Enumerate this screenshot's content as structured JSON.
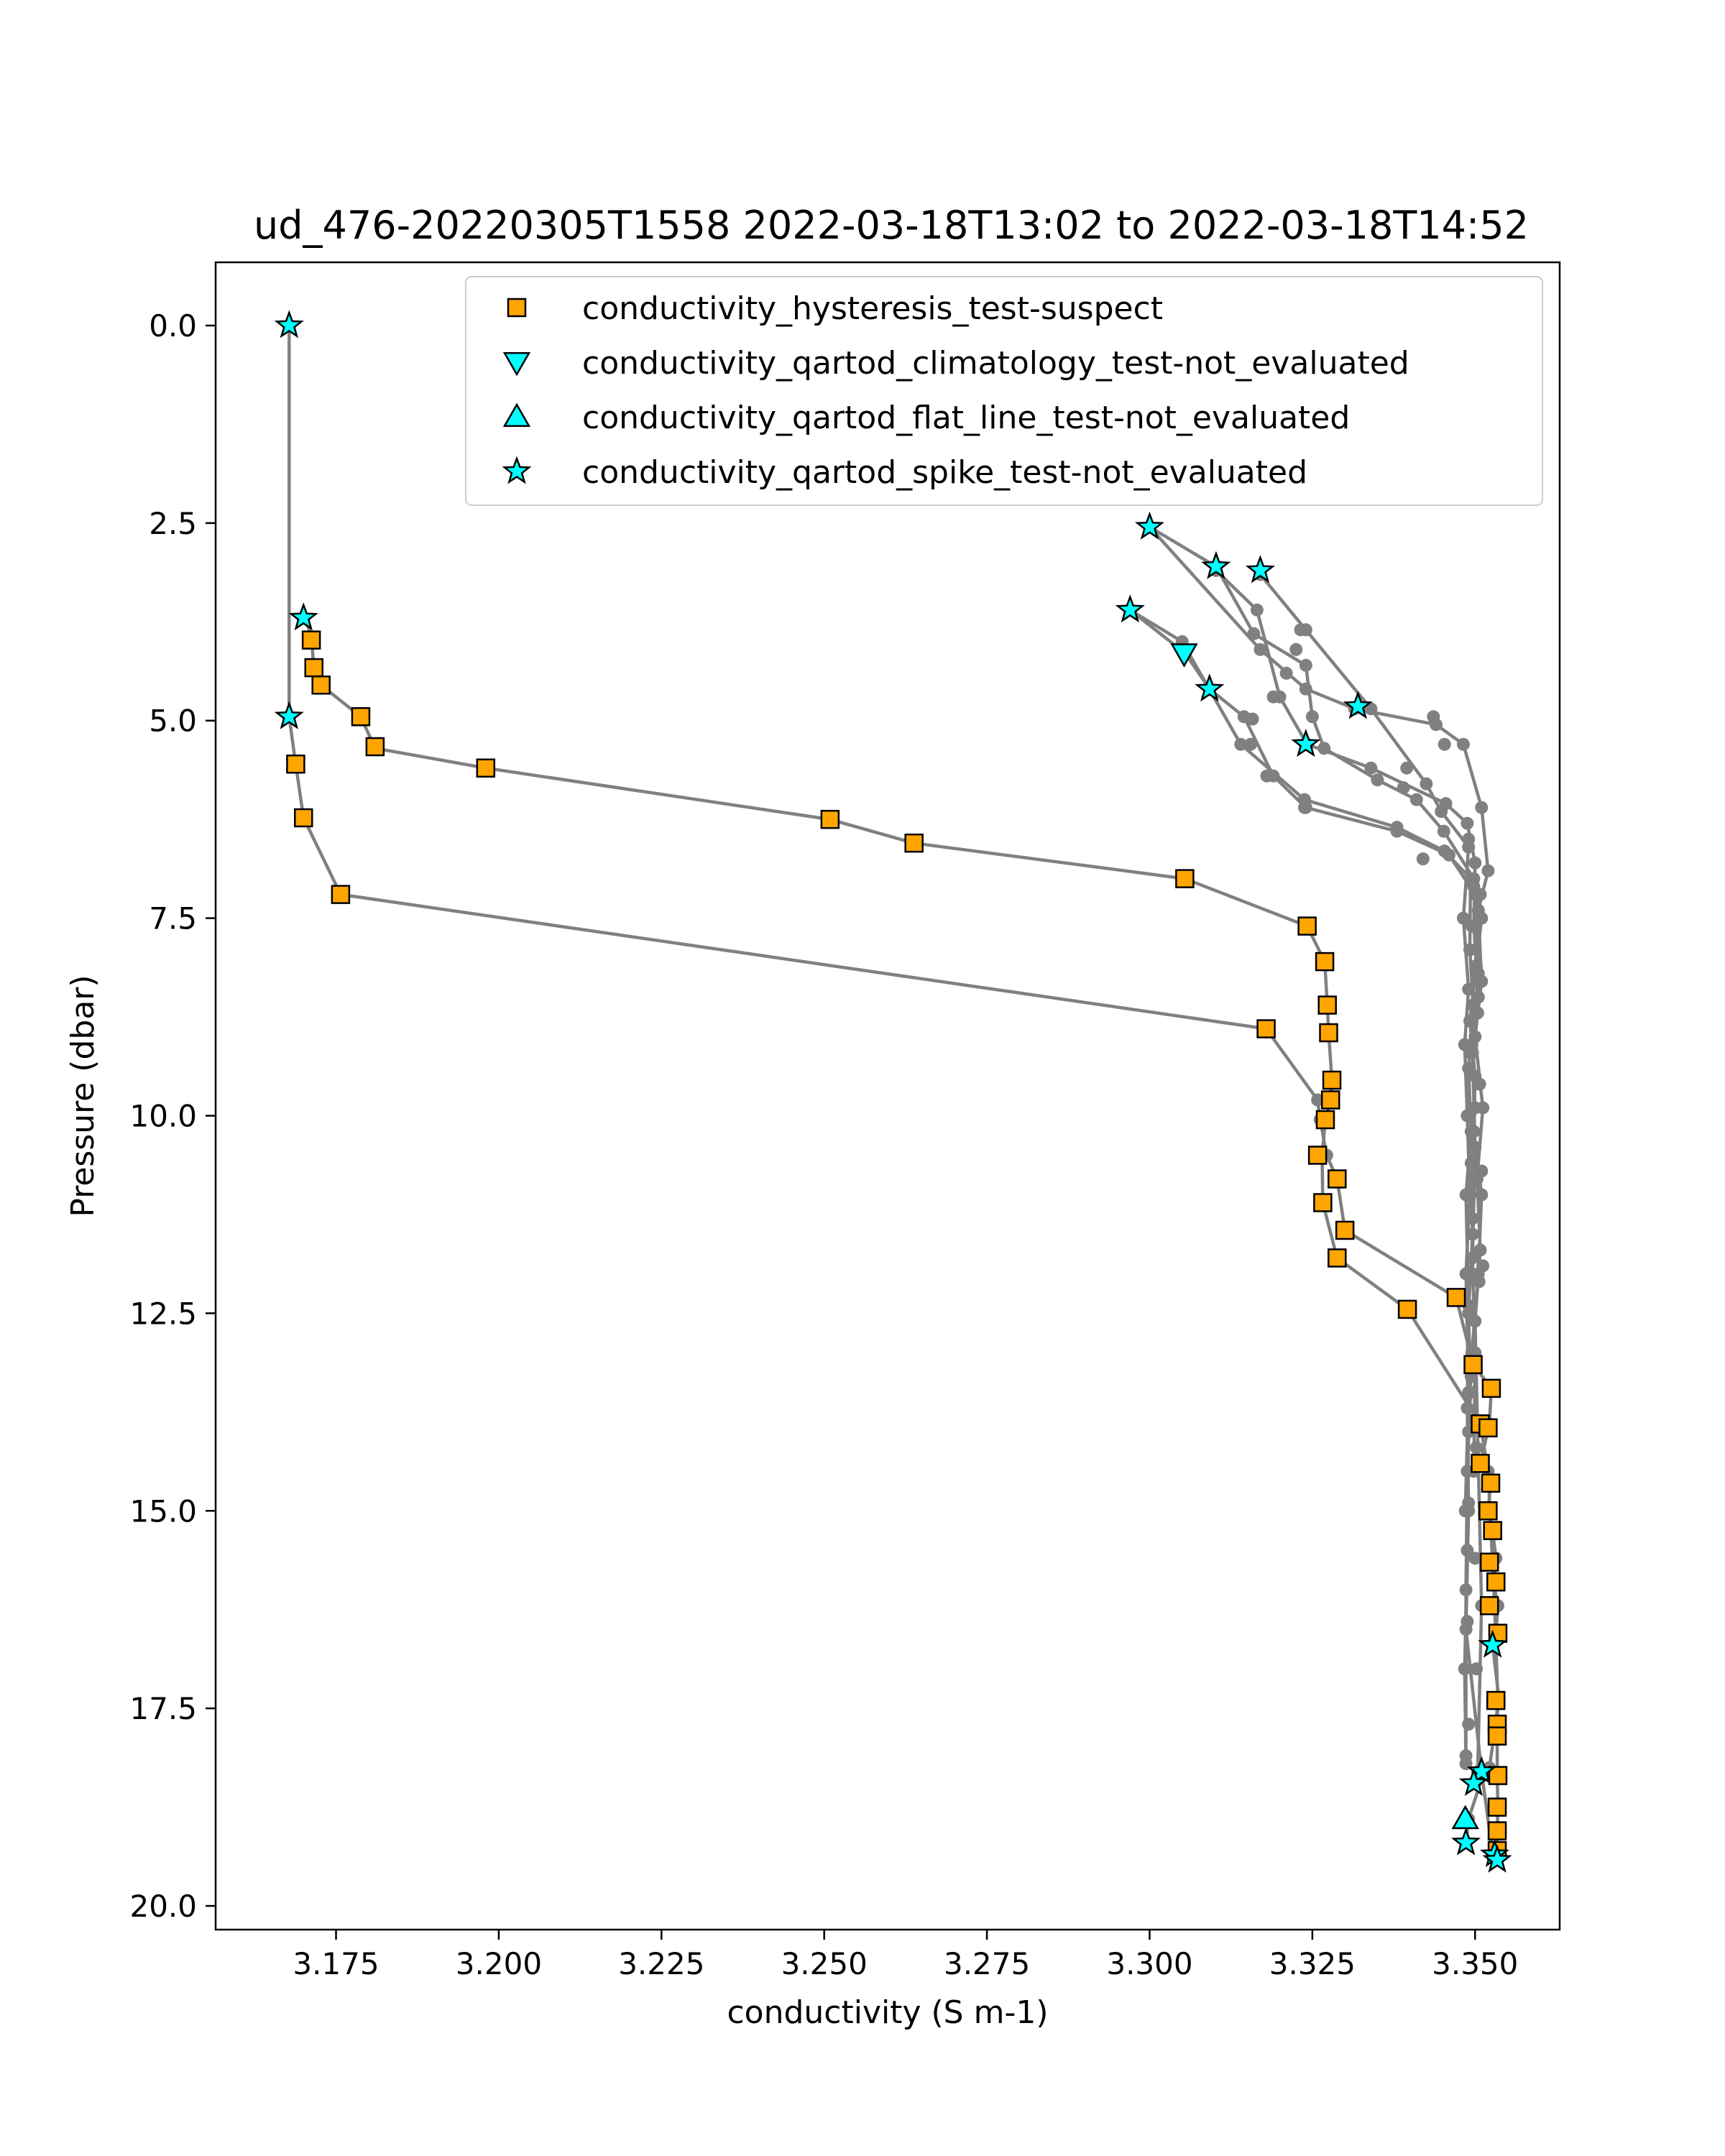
{
  "chart_data": {
    "type": "line",
    "title": "ud_476-20220305T1558 2022-03-18T13:02 to 2022-03-18T14:52",
    "xlabel": "conductivity (S m-1)",
    "ylabel": "Pressure (dbar)",
    "xlim": [
      3.1565,
      3.363
    ],
    "ylim": [
      20.3,
      -0.8
    ],
    "y_inverted": true,
    "grid": false,
    "legend_position": "upper-right",
    "xticks": [
      "3.175",
      "3.200",
      "3.225",
      "3.250",
      "3.275",
      "3.300",
      "3.325",
      "3.350"
    ],
    "yticks": [
      "0.0",
      "2.5",
      "5.0",
      "7.5",
      "10.0",
      "12.5",
      "15.0",
      "17.5",
      "20.0"
    ],
    "colors": {
      "line": "#808080",
      "suspect": "#ffa500",
      "not_evaluated": "#00ffff",
      "edge": "#000000"
    },
    "legend": [
      {
        "label": "conductivity_hysteresis_test-suspect",
        "marker": "square",
        "color": "#ffa500"
      },
      {
        "label": "conductivity_qartod_climatology_test-not_evaluated",
        "marker": "triangle-down",
        "color": "#00ffff"
      },
      {
        "label": "conductivity_qartod_flat_line_test-not_evaluated",
        "marker": "triangle-up",
        "color": "#00ffff"
      },
      {
        "label": "conductivity_qartod_spike_test-not_evaluated",
        "marker": "star",
        "color": "#00ffff"
      }
    ],
    "profiles": [
      {
        "x": [
          3.1678,
          3.1678,
          3.1678,
          3.1678,
          3.1678
        ],
        "y": [
          0.0,
          1.5,
          3.0,
          4.5,
          4.95
        ]
      },
      {
        "x": [
          3.1678,
          3.1688,
          3.17,
          3.1757,
          3.3179,
          3.3258,
          3.3262,
          3.3272,
          3.3288,
          3.33,
          3.3471,
          3.3497,
          3.3525,
          3.3522,
          3.3508,
          3.3524,
          3.352,
          3.3527,
          3.3532,
          3.3528,
          3.3535,
          3.3532,
          3.3527,
          3.3537,
          3.3522,
          3.3512,
          3.349,
          3.3486
        ],
        "y": [
          4.95,
          5.55,
          6.23,
          7.2,
          8.9,
          9.8,
          10.05,
          10.5,
          10.8,
          11.45,
          12.3,
          13.15,
          13.45,
          13.9,
          14.4,
          14.65,
          15.0,
          15.25,
          15.6,
          15.9,
          16.2,
          16.55,
          16.7,
          17.4,
          18.25,
          18.35,
          18.9,
          19.2
        ]
      },
      {
        "x": [
          3.17,
          3.1712,
          3.1716,
          3.1727,
          3.1788,
          3.181,
          3.198,
          3.2509,
          3.2638,
          3.3054,
          3.3242,
          3.3269,
          3.3273,
          3.3275,
          3.328,
          3.3278,
          3.327,
          3.3265,
          3.3266,
          3.3288,
          3.3396,
          3.3508,
          3.352,
          3.353,
          3.3535,
          3.3532,
          3.3534,
          3.3534,
          3.3535,
          3.3534,
          3.3534
        ],
        "y": [
          3.7,
          3.9,
          4.35,
          4.55,
          4.95,
          5.35,
          5.6,
          6.25,
          6.55,
          7.0,
          7.6,
          8.05,
          8.6,
          8.95,
          9.55,
          9.8,
          10.05,
          10.5,
          11.1,
          11.8,
          12.45,
          13.9,
          14.5,
          16.2,
          17.4,
          17.7,
          17.85,
          18.35,
          18.75,
          19.05,
          19.35
        ]
      },
      {
        "x": [
          3.3,
          3.3102,
          3.316,
          3.324,
          3.325,
          3.3268,
          3.335,
          3.341,
          3.3452,
          3.3498,
          3.351,
          3.3502,
          3.3492,
          3.35,
          3.3498,
          3.351,
          3.3505,
          3.3495,
          3.349,
          3.3488,
          3.3484,
          3.3486
        ],
        "y": [
          2.55,
          3.05,
          3.9,
          4.3,
          4.95,
          5.35,
          5.75,
          6.0,
          6.4,
          7.0,
          7.5,
          8.1,
          8.8,
          9.5,
          10.2,
          11.0,
          12.0,
          13.0,
          14.0,
          15.5,
          17.0,
          18.2
        ]
      },
      {
        "x": [
          3.3,
          3.317,
          3.324,
          3.3315,
          3.344,
          3.3482,
          3.351,
          3.352,
          3.3505,
          3.351,
          3.35,
          3.3512,
          3.3503,
          3.3508,
          3.35,
          3.3505,
          3.351,
          3.3504
        ],
        "y": [
          2.55,
          4.1,
          4.6,
          4.85,
          5.05,
          5.3,
          6.1,
          6.9,
          7.4,
          8.3,
          9.0,
          9.9,
          10.8,
          11.7,
          12.6,
          14.4,
          16.2,
          18.3
        ]
      },
      {
        "x": [
          3.3102,
          3.3165,
          3.32,
          3.3242,
          3.334,
          3.3455,
          3.3488,
          3.35,
          3.3498,
          3.3505,
          3.3495,
          3.35,
          3.3494,
          3.3496,
          3.349,
          3.3493,
          3.3488,
          3.3486,
          3.3486
        ],
        "y": [
          3.1,
          3.6,
          4.7,
          5.3,
          5.6,
          6.05,
          6.3,
          6.8,
          7.6,
          8.5,
          9.1,
          9.9,
          10.6,
          11.5,
          12.5,
          13.5,
          14.5,
          16.0,
          18.1
        ]
      },
      {
        "x": [
          3.317,
          3.324,
          3.334,
          3.3425,
          3.3448,
          3.349,
          3.3482,
          3.349,
          3.3484,
          3.3488,
          3.3492,
          3.3486,
          3.349,
          3.3485
        ],
        "y": [
          3.15,
          3.85,
          4.85,
          5.8,
          6.15,
          6.6,
          7.5,
          8.4,
          9.1,
          10.0,
          11.0,
          12.0,
          13.5,
          15.0
        ]
      },
      {
        "x": [
          3.297,
          3.3055,
          3.3092,
          3.3145,
          3.319,
          3.324,
          3.338,
          3.346,
          3.35,
          3.3505,
          3.3496,
          3.35,
          3.3496,
          3.35,
          3.3498
        ],
        "y": [
          3.6,
          4.15,
          4.6,
          4.95,
          5.7,
          6.1,
          6.4,
          6.7,
          7.2,
          8.2,
          9.2,
          10.4,
          11.8,
          13.0,
          14.5
        ]
      },
      {
        "x": [
          3.297,
          3.305,
          3.314,
          3.3238,
          3.338,
          3.3453,
          3.3493,
          3.3492,
          3.3497,
          3.349,
          3.3494,
          3.3486,
          3.349,
          3.3488,
          3.349,
          3.3486,
          3.351,
          3.3528
        ],
        "y": [
          3.6,
          4.0,
          5.3,
          6.0,
          6.35,
          6.65,
          7.0,
          7.9,
          8.6,
          9.4,
          10.2,
          11.0,
          12.4,
          13.7,
          15.0,
          16.5,
          18.3,
          19.4
        ]
      }
    ],
    "points_gray": [
      {
        "x": 3.3232,
        "y": 3.85
      },
      {
        "x": 3.3225,
        "y": 4.1
      },
      {
        "x": 3.321,
        "y": 4.4
      },
      {
        "x": 3.319,
        "y": 4.7
      },
      {
        "x": 3.3158,
        "y": 4.98
      },
      {
        "x": 3.3155,
        "y": 5.3
      },
      {
        "x": 3.318,
        "y": 5.7
      },
      {
        "x": 3.3238,
        "y": 6.1
      },
      {
        "x": 3.3436,
        "y": 4.95
      },
      {
        "x": 3.3453,
        "y": 5.3
      },
      {
        "x": 3.3395,
        "y": 5.6
      },
      {
        "x": 3.339,
        "y": 5.85
      },
      {
        "x": 3.342,
        "y": 6.75
      },
      {
        "x": 3.349,
        "y": 6.5
      },
      {
        "x": 3.3498,
        "y": 7.1
      },
      {
        "x": 3.3495,
        "y": 7.6
      },
      {
        "x": 3.3508,
        "y": 7.2
      },
      {
        "x": 3.3506,
        "y": 8.3
      },
      {
        "x": 3.3504,
        "y": 8.7
      },
      {
        "x": 3.3492,
        "y": 9.2
      },
      {
        "x": 3.3507,
        "y": 9.6
      },
      {
        "x": 3.351,
        "y": 10.7
      },
      {
        "x": 3.3496,
        "y": 11.3
      },
      {
        "x": 3.3512,
        "y": 11.9
      },
      {
        "x": 3.3506,
        "y": 12.1
      },
      {
        "x": 3.3494,
        "y": 13.3
      },
      {
        "x": 3.3502,
        "y": 14.2
      },
      {
        "x": 3.349,
        "y": 14.9
      },
      {
        "x": 3.35,
        "y": 15.6
      },
      {
        "x": 3.3488,
        "y": 16.4
      },
      {
        "x": 3.3502,
        "y": 17.0
      },
      {
        "x": 3.349,
        "y": 17.7
      }
    ],
    "series": [
      {
        "name": "conductivity_hysteresis_test-suspect",
        "marker": "square",
        "points": [
          {
            "x": 3.1712,
            "y": 3.98
          },
          {
            "x": 3.1716,
            "y": 4.33
          },
          {
            "x": 3.1727,
            "y": 4.55
          },
          {
            "x": 3.1788,
            "y": 4.95
          },
          {
            "x": 3.181,
            "y": 5.33
          },
          {
            "x": 3.1688,
            "y": 5.55
          },
          {
            "x": 3.198,
            "y": 5.6
          },
          {
            "x": 3.17,
            "y": 6.23
          },
          {
            "x": 3.2509,
            "y": 6.25
          },
          {
            "x": 3.2638,
            "y": 6.55
          },
          {
            "x": 3.3054,
            "y": 7.0
          },
          {
            "x": 3.1757,
            "y": 7.2
          },
          {
            "x": 3.3242,
            "y": 7.6
          },
          {
            "x": 3.3269,
            "y": 8.05
          },
          {
            "x": 3.3273,
            "y": 8.6
          },
          {
            "x": 3.3179,
            "y": 8.9
          },
          {
            "x": 3.3275,
            "y": 8.95
          },
          {
            "x": 3.328,
            "y": 9.55
          },
          {
            "x": 3.3278,
            "y": 9.8
          },
          {
            "x": 3.327,
            "y": 10.05
          },
          {
            "x": 3.3258,
            "y": 10.5
          },
          {
            "x": 3.3288,
            "y": 10.8
          },
          {
            "x": 3.3266,
            "y": 11.1
          },
          {
            "x": 3.33,
            "y": 11.45
          },
          {
            "x": 3.3288,
            "y": 11.8
          },
          {
            "x": 3.3471,
            "y": 12.3
          },
          {
            "x": 3.3396,
            "y": 12.45
          },
          {
            "x": 3.3497,
            "y": 13.15
          },
          {
            "x": 3.3525,
            "y": 13.45
          },
          {
            "x": 3.3508,
            "y": 13.9
          },
          {
            "x": 3.352,
            "y": 13.95
          },
          {
            "x": 3.3508,
            "y": 14.4
          },
          {
            "x": 3.3524,
            "y": 14.65
          },
          {
            "x": 3.352,
            "y": 15.0
          },
          {
            "x": 3.3527,
            "y": 15.25
          },
          {
            "x": 3.3522,
            "y": 15.65
          },
          {
            "x": 3.3532,
            "y": 15.9
          },
          {
            "x": 3.3522,
            "y": 16.2
          },
          {
            "x": 3.3535,
            "y": 16.55
          },
          {
            "x": 3.3532,
            "y": 17.4
          },
          {
            "x": 3.3534,
            "y": 17.7
          },
          {
            "x": 3.3534,
            "y": 17.85
          },
          {
            "x": 3.3535,
            "y": 18.35
          },
          {
            "x": 3.3534,
            "y": 18.75
          },
          {
            "x": 3.3534,
            "y": 19.05
          },
          {
            "x": 3.3534,
            "y": 19.3
          }
        ]
      },
      {
        "name": "conductivity_qartod_climatology_test-not_evaluated",
        "marker": "triangle-down",
        "points": [
          {
            "x": 3.3053,
            "y": 4.15
          }
        ]
      },
      {
        "name": "conductivity_qartod_flat_line_test-not_evaluated",
        "marker": "triangle-up",
        "points": [
          {
            "x": 3.3485,
            "y": 18.9
          }
        ]
      },
      {
        "name": "conductivity_qartod_spike_test-not_evaluated",
        "marker": "star",
        "points": [
          {
            "x": 3.1678,
            "y": 0.0
          },
          {
            "x": 3.3,
            "y": 2.55
          },
          {
            "x": 3.3102,
            "y": 3.05
          },
          {
            "x": 3.317,
            "y": 3.1
          },
          {
            "x": 3.297,
            "y": 3.6
          },
          {
            "x": 3.17,
            "y": 3.7
          },
          {
            "x": 3.3092,
            "y": 4.6
          },
          {
            "x": 3.332,
            "y": 4.82
          },
          {
            "x": 3.1678,
            "y": 4.95
          },
          {
            "x": 3.324,
            "y": 5.3
          },
          {
            "x": 3.3527,
            "y": 16.7
          },
          {
            "x": 3.351,
            "y": 18.3
          },
          {
            "x": 3.3498,
            "y": 18.45
          },
          {
            "x": 3.3486,
            "y": 19.2
          },
          {
            "x": 3.353,
            "y": 19.35
          },
          {
            "x": 3.3534,
            "y": 19.42
          }
        ]
      }
    ]
  }
}
